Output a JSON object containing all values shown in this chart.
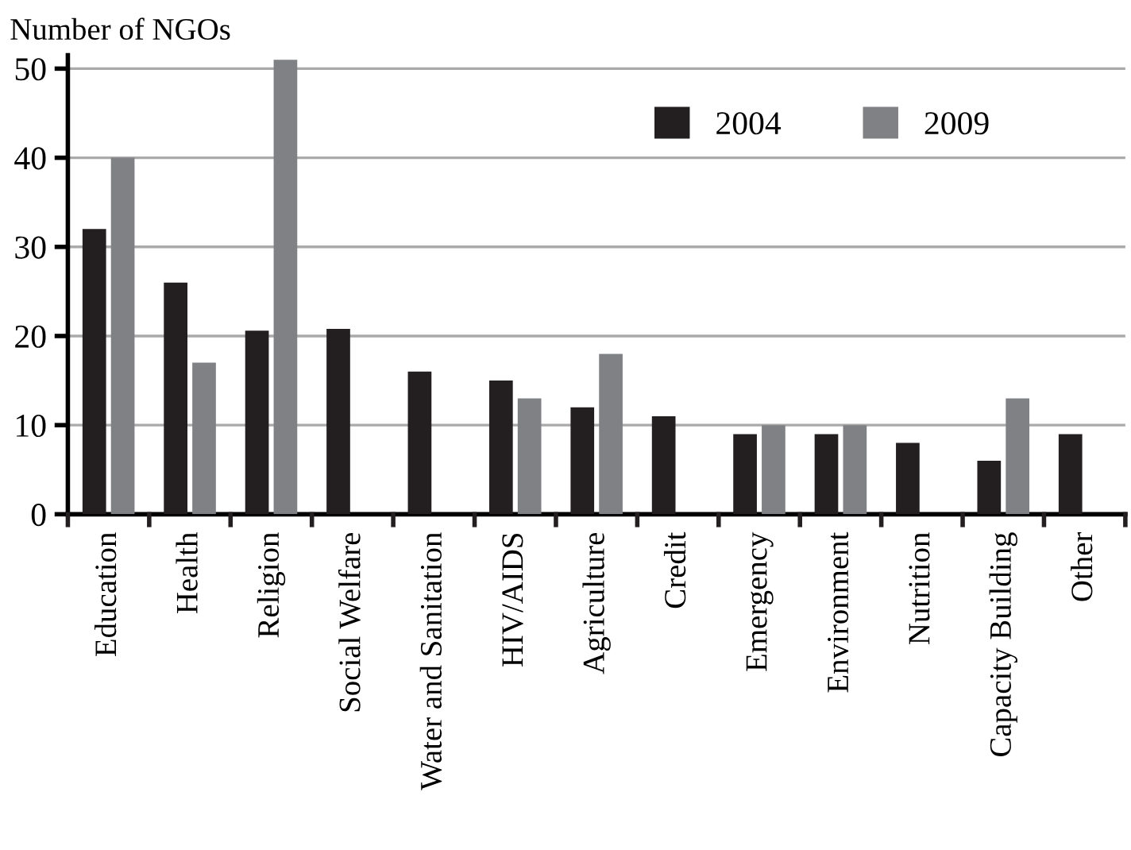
{
  "chart_data": {
    "type": "bar",
    "ylabel": "Number of NGOs",
    "categories": [
      "Education",
      "Health",
      "Religion",
      "Social Welfare",
      "Water and Sanitation",
      "HIV/AIDS",
      "Agriculture",
      "Credit",
      "Emergency",
      "Environment",
      "Nutrition",
      "Capacity Building",
      "Other"
    ],
    "series": [
      {
        "name": "2004",
        "color": "#231f20",
        "values": [
          32,
          26,
          20.6,
          20.8,
          16,
          15,
          12,
          11,
          9,
          9,
          8,
          6,
          9
        ]
      },
      {
        "name": "2009",
        "color": "#808184",
        "values": [
          40,
          17,
          51,
          null,
          null,
          13,
          18,
          null,
          10,
          10,
          null,
          13,
          null
        ]
      }
    ],
    "ylim": [
      0,
      51.5
    ],
    "yticks": [
      0,
      10,
      20,
      30,
      40,
      50
    ],
    "grid": "y",
    "legend": "top right"
  }
}
